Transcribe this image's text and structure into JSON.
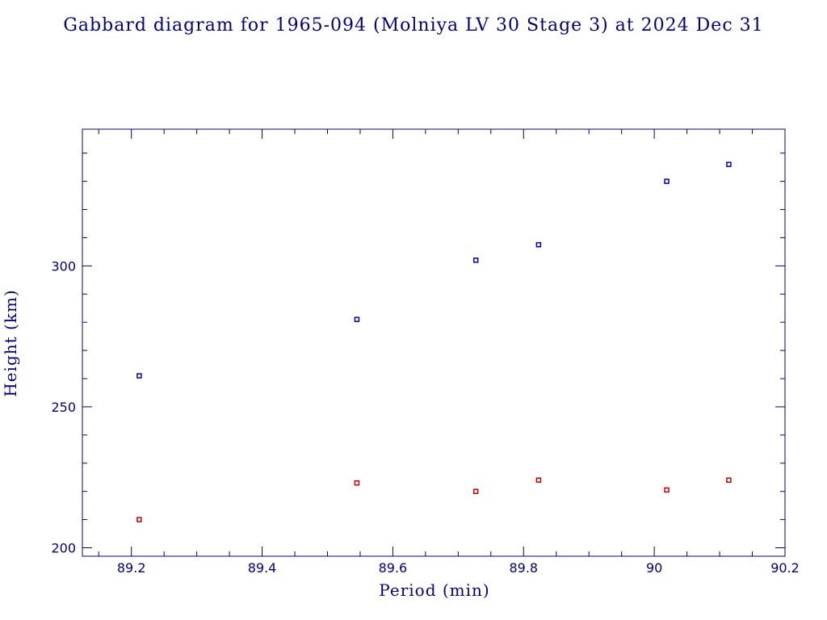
{
  "chart_data": {
    "type": "scatter",
    "title": "Gabbard diagram for 1965-094 (Molniya LV 30 Stage 3) at 2024 Dec 31",
    "xlabel": "Period (min)",
    "ylabel": "Height (km)",
    "xlim": [
      89.125,
      90.2
    ],
    "ylim": [
      197,
      348.5
    ],
    "xticks": [
      89.2,
      89.4,
      89.6,
      89.8,
      90,
      90.2
    ],
    "xtick_labels": [
      "89.2",
      "89.4",
      "89.6",
      "89.8",
      "90",
      "90.2"
    ],
    "yticks": [
      200,
      250,
      300
    ],
    "ytick_labels": [
      "200",
      "250",
      "300"
    ],
    "x_minor_step": 0.05,
    "y_minor_step": 10,
    "grid": false,
    "series": [
      {
        "color": "#0000cc",
        "marker": "square",
        "points": [
          [
            89.212,
            261
          ],
          [
            89.545,
            281
          ],
          [
            89.727,
            302
          ],
          [
            89.823,
            307.5
          ],
          [
            90.019,
            330
          ],
          [
            90.114,
            336
          ]
        ]
      },
      {
        "color": "#cc0000",
        "marker": "square",
        "points": [
          [
            89.212,
            210
          ],
          [
            89.545,
            223
          ],
          [
            89.727,
            220
          ],
          [
            89.823,
            224
          ],
          [
            90.019,
            220.5
          ],
          [
            90.114,
            224
          ]
        ]
      }
    ],
    "axis_color": "#00008b"
  }
}
